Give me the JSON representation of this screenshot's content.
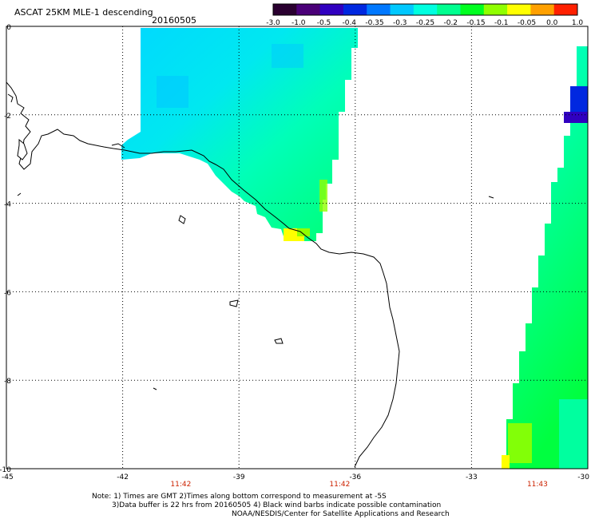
{
  "header": {
    "title": "ASCAT 25KM MLE-1 descending",
    "date": "20160505"
  },
  "colorbar": {
    "labels": [
      "-3.0",
      "-1.0",
      "-0.5",
      "-0.4",
      "-0.35",
      "-0.3",
      "-0.25",
      "-0.2",
      "-0.15",
      "-0.1",
      "-0.05",
      "0.0",
      "1.0"
    ],
    "stops": [
      "#2a0030",
      "#4a0078",
      "#3000c0",
      "#0028e0",
      "#0078ff",
      "#00c8ff",
      "#00ffe0",
      "#00ff90",
      "#00ff20",
      "#90ff00",
      "#ffff00",
      "#ffa000",
      "#ff2000"
    ]
  },
  "map": {
    "lon_range": [
      -45,
      -30
    ],
    "lat_range": [
      0,
      -10
    ],
    "lon_ticks": [
      "-45",
      "-42",
      "-39",
      "-36",
      "-33",
      "-30"
    ],
    "lat_ticks": [
      "0",
      "-2",
      "-4",
      "-6",
      "-8",
      "-10"
    ],
    "time_labels": [
      "11:42",
      "11:42",
      "11:43"
    ],
    "time_label_color": "#cc2200",
    "grid": "dotted"
  },
  "notes": {
    "line1": "Note: 1) Times are GMT 2)Times along bottom correspond to measurement at -5S",
    "line2": "3)Data buffer is 22 hrs from 20160505 4) Black wind barbs indicate possible contamination",
    "line3": "NOAA/NESDIS/Center for Satellite Applications and Research"
  }
}
